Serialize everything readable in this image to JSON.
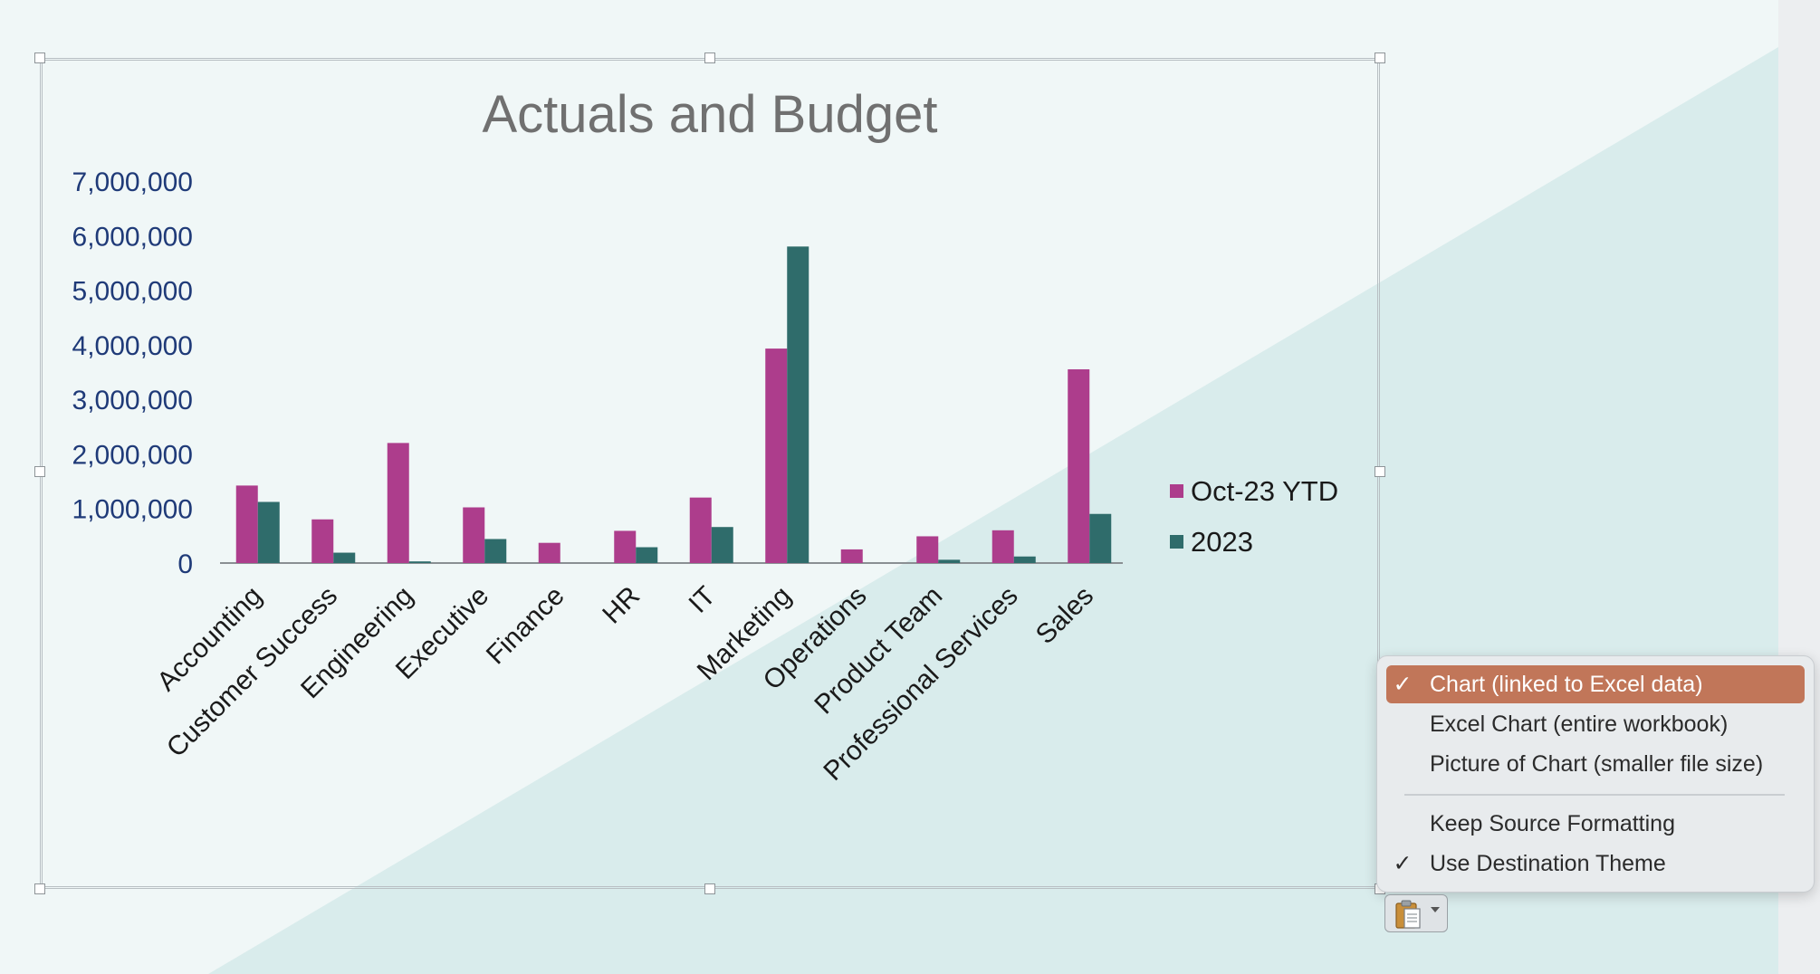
{
  "colors": {
    "series_actual": "#ad3d8c",
    "series_budget": "#2f6c6b",
    "highlight": "#c17659"
  },
  "chart_data": {
    "type": "bar",
    "title": "Actuals and Budget",
    "xlabel": "",
    "ylabel": "",
    "categories": [
      "Accounting",
      "Customer Success",
      "Engineering",
      "Executive",
      "Finance",
      "HR",
      "IT",
      "Marketing",
      "Operations",
      "Product Team",
      "Professional Services",
      "Sales"
    ],
    "series": [
      {
        "name": "Oct-23 YTD",
        "values": [
          1420000,
          800000,
          2200000,
          1020000,
          370000,
          590000,
          1200000,
          3930000,
          250000,
          490000,
          600000,
          3550000
        ]
      },
      {
        "name": "2023",
        "values": [
          1120000,
          190000,
          30000,
          440000,
          0,
          290000,
          660000,
          5800000,
          0,
          60000,
          120000,
          900000
        ]
      }
    ],
    "ylim": [
      0,
      7000000
    ],
    "yticks": [
      "7,000,000",
      "6,000,000",
      "5,000,000",
      "4,000,000",
      "3,000,000",
      "2,000,000",
      "1,000,000",
      "0"
    ],
    "grid": false,
    "legend_position": "right"
  },
  "paste_menu": {
    "items": [
      {
        "label": "Chart (linked to Excel data)",
        "checked": true
      },
      {
        "label": "Excel Chart (entire workbook)",
        "checked": false
      },
      {
        "label": "Picture of Chart (smaller file size)",
        "checked": false
      },
      {
        "label": "Keep Source Formatting",
        "checked": false
      },
      {
        "label": "Use Destination Theme",
        "checked": true
      }
    ],
    "check_glyph": "✓"
  },
  "paste_button": {
    "icon": "clipboard-icon"
  }
}
